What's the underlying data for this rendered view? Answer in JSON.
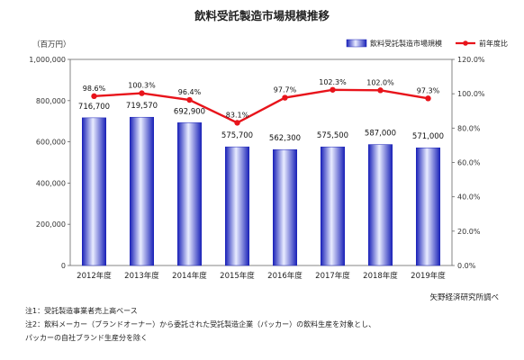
{
  "chart_data": {
    "type": "bar+line",
    "title": "飲料受託製造市場規模推移",
    "unit_label": "（百万円）",
    "categories": [
      "2012年度",
      "2013年度",
      "2014年度",
      "2015年度",
      "2016年度",
      "2017年度",
      "2018年度",
      "2019年度"
    ],
    "bar_series": {
      "name": "飲料受託製造市場規模",
      "values": [
        716700,
        719570,
        692900,
        575700,
        562300,
        575500,
        587000,
        571000
      ],
      "value_labels": [
        "716,700",
        "719,570",
        "692,900",
        "575,700",
        "562,300",
        "575,500",
        "587,000",
        "571,000"
      ],
      "color": "#2233cc"
    },
    "line_series": {
      "name": "前年度比",
      "values": [
        98.6,
        100.3,
        96.4,
        83.1,
        97.7,
        102.3,
        102.0,
        97.3
      ],
      "value_labels": [
        "98.6%",
        "100.3%",
        "96.4%",
        "83.1%",
        "97.7%",
        "102.3%",
        "102.0%",
        "97.3%"
      ],
      "color": "#e8141b"
    },
    "y_left": {
      "min": 0,
      "max": 1000000,
      "ticks": [
        "0",
        "200,000",
        "400,000",
        "600,000",
        "800,000",
        "1,000,000"
      ]
    },
    "y_right": {
      "min": 0,
      "max": 120,
      "ticks": [
        "0.0%",
        "20.0%",
        "40.0%",
        "60.0%",
        "80.0%",
        "100.0%",
        "120.0%"
      ]
    },
    "legend_position": "top-right",
    "grid": false
  },
  "source": "矢野経済研究所調べ",
  "notes": [
    "注1：受託製造事業者売上高ベース",
    "注2：飲料メーカー（ブランドオーナー）から委託された受託製造企業（パッカー）の飲料生産を対象とし、",
    "パッカーの自社ブランド生産分を除く"
  ]
}
